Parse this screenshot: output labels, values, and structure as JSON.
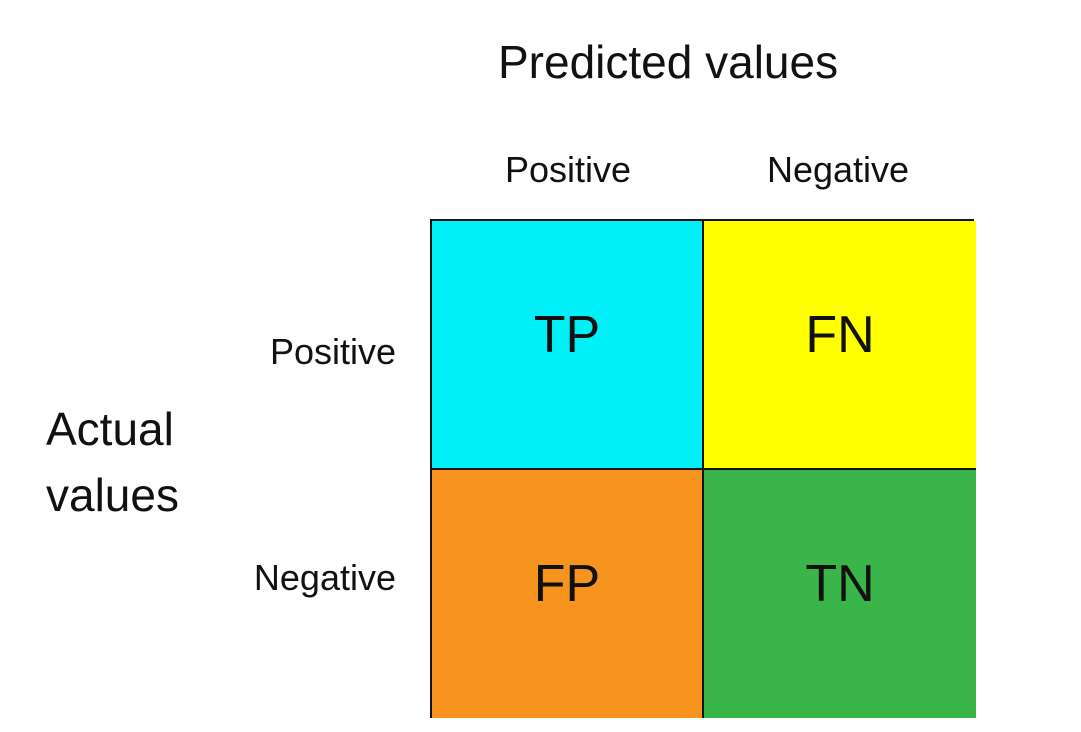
{
  "predicted_title": "Predicted values",
  "actual_title": "Actual\nvalues",
  "columns": [
    "Positive",
    "Negative"
  ],
  "rows": [
    "Positive",
    "Negative"
  ],
  "cells": [
    {
      "label": "TP",
      "color": "#00f0f7"
    },
    {
      "label": "FN",
      "color": "#ffff00"
    },
    {
      "label": "FP",
      "color": "#f7941d"
    },
    {
      "label": "TN",
      "color": "#39b54a"
    }
  ]
}
